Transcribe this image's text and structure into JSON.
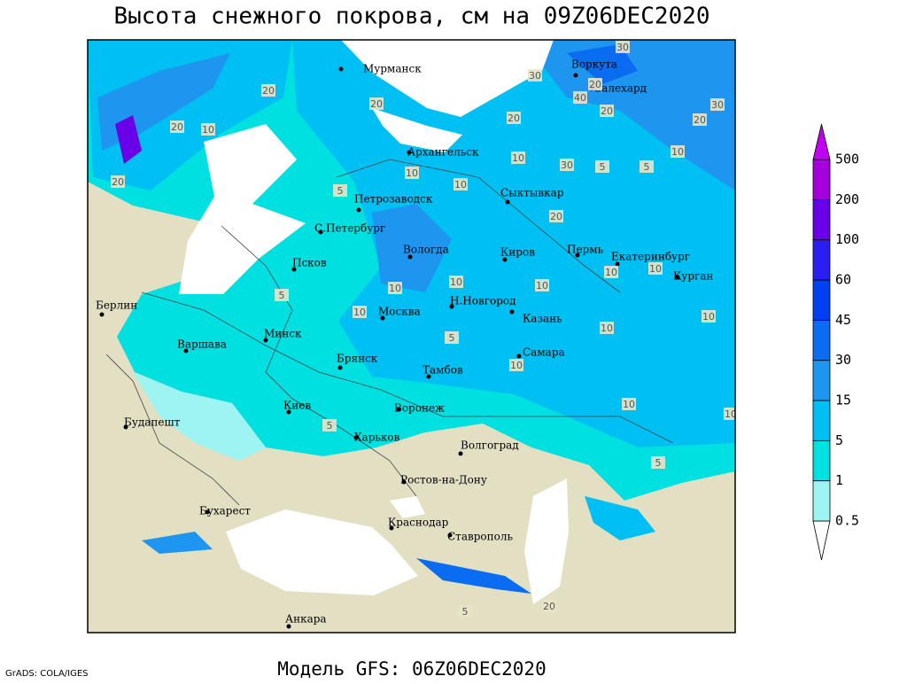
{
  "title": "Высота снежного покрова, см на 09Z06DEC2020",
  "subtitle": "Модель GFS: 06Z06DEC2020",
  "credit": "GrADS: COLA/IGES",
  "cities": [
    "Мурманск",
    "Воркута",
    "Салехард",
    "Архангельск",
    "Сыктывкар",
    "Петрозаводск",
    "С.Петербург",
    "Вологда",
    "Киров",
    "Пермь",
    "Екатеринбург",
    "Курган",
    "Псков",
    "Н.Новгород",
    "Казань",
    "Москва",
    "Минск",
    "Берлин",
    "Варшава",
    "Брянск",
    "Тамбов",
    "Самара",
    "Киев",
    "Воронеж",
    "Будапешт",
    "Харьков",
    "Волгоград",
    "Ростов-на-Дону",
    "Бухарест",
    "Краснодар",
    "Ставрополь",
    "Анкара"
  ],
  "contour_labels": [
    "30",
    "30",
    "20",
    "40",
    "20",
    "30",
    "20",
    "20",
    "20",
    "20",
    "10",
    "20",
    "20",
    "10",
    "10",
    "10",
    "30",
    "5",
    "5",
    "10",
    "20",
    "10",
    "10",
    "10",
    "10",
    "10",
    "10",
    "10",
    "10",
    "10",
    "10",
    "5",
    "5",
    "5",
    "5",
    "5",
    "20",
    "5",
    "10"
  ],
  "legend": {
    "levels": [
      0.5,
      1,
      5,
      15,
      30,
      45,
      60,
      100,
      200,
      500
    ],
    "colors": [
      "#ffffff",
      "#9ef3f3",
      "#00e0e0",
      "#00bff2",
      "#1e96f0",
      "#0a6cf0",
      "#0040f0",
      "#2a1ef0",
      "#6a00e8",
      "#a400dc",
      "#c000ee"
    ]
  }
}
